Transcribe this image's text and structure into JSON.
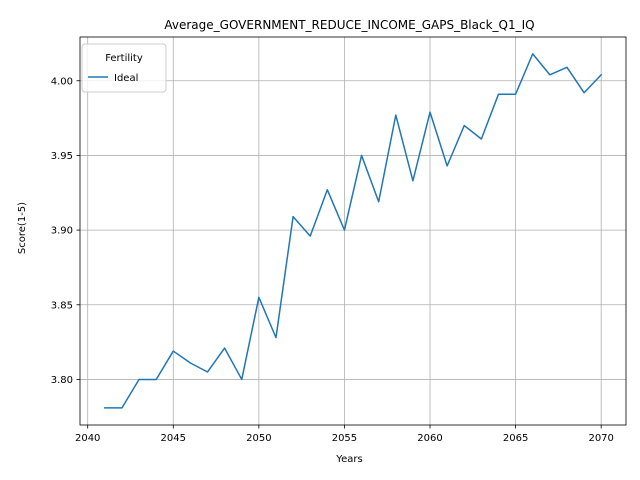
{
  "chart_data": {
    "type": "line",
    "title": "Average_GOVERNMENT_REDUCE_INCOME_GAPS_Black_Q1_IQ",
    "xlabel": "Years",
    "ylabel": "Score(1-5)",
    "xlim": [
      2039.55,
      2071.45
    ],
    "ylim": [
      3.7695,
      4.0293
    ],
    "xticks": [
      2040,
      2045,
      2050,
      2055,
      2060,
      2065,
      2070
    ],
    "xtick_labels": [
      "2040",
      "2045",
      "2050",
      "2055",
      "2060",
      "2065",
      "2070"
    ],
    "yticks": [
      3.8,
      3.85,
      3.9,
      3.95,
      4.0
    ],
    "ytick_labels": [
      "3.80",
      "3.85",
      "3.90",
      "3.95",
      "4.00"
    ],
    "grid": true,
    "legend": {
      "title": "Fertility",
      "placement": "upper left"
    },
    "series": [
      {
        "name": "Ideal",
        "color": "#1f77b4",
        "x": [
          2041,
          2042,
          2043,
          2044,
          2045,
          2046,
          2047,
          2048,
          2049,
          2050,
          2051,
          2052,
          2053,
          2054,
          2055,
          2056,
          2057,
          2058,
          2059,
          2060,
          2061,
          2062,
          2063,
          2064,
          2065,
          2066,
          2067,
          2068,
          2069,
          2070
        ],
        "values": [
          3.781,
          3.781,
          3.8,
          3.8,
          3.819,
          3.811,
          3.805,
          3.821,
          3.8,
          3.855,
          3.828,
          3.909,
          3.896,
          3.927,
          3.9,
          3.95,
          3.919,
          3.977,
          3.933,
          3.979,
          3.943,
          3.97,
          3.961,
          3.991,
          3.991,
          4.018,
          4.004,
          4.009,
          3.992,
          4.004
        ]
      }
    ]
  }
}
